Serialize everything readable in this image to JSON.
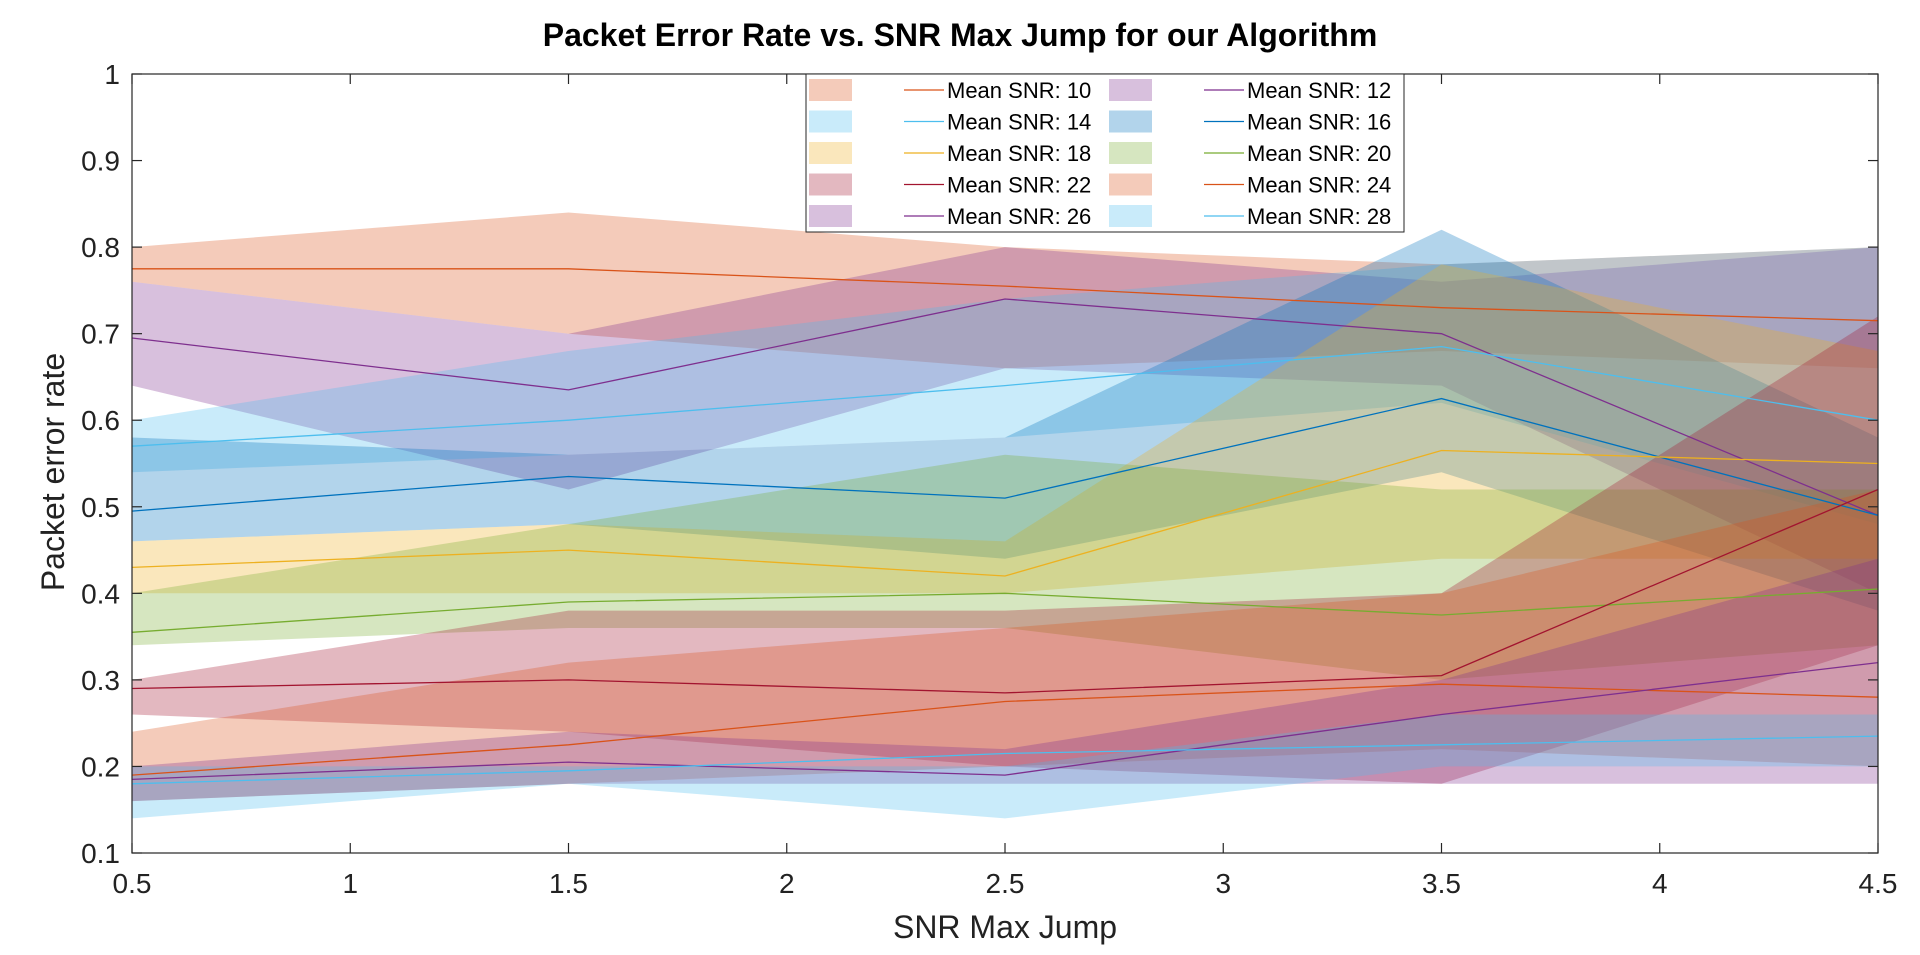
{
  "chart_data": {
    "type": "area",
    "title": "Packet Error Rate vs. SNR Max Jump for our Algorithm",
    "xlabel": "SNR Max Jump",
    "ylabel": "Packet error rate",
    "xlim": [
      0.5,
      4.5
    ],
    "ylim": [
      0.1,
      1
    ],
    "xticks": [
      0.5,
      1,
      1.5,
      2,
      2.5,
      3,
      3.5,
      4,
      4.5
    ],
    "yticks": [
      0.1,
      0.2,
      0.3,
      0.4,
      0.5,
      0.6,
      0.7,
      0.8,
      0.9,
      1
    ],
    "xtick_labels": [
      "0.5",
      "1",
      "1.5",
      "2",
      "2.5",
      "3",
      "3.5",
      "4",
      "4.5"
    ],
    "ytick_labels": [
      "0.1",
      "0.2",
      "0.3",
      "0.4",
      "0.5",
      "0.6",
      "0.7",
      "0.8",
      "0.9",
      "1"
    ],
    "grid": false,
    "legend_position": "top-center",
    "legend_columns": 2,
    "x": [
      0.5,
      1.5,
      2.5,
      3.5,
      4.5
    ],
    "series": [
      {
        "name": "Mean SNR: 10",
        "color": "#D95319",
        "mean": [
          0.775,
          0.775,
          0.755,
          0.73,
          0.715
        ],
        "lower": [
          0.76,
          0.7,
          0.66,
          0.68,
          0.66
        ],
        "upper": [
          0.8,
          0.84,
          0.8,
          0.78,
          0.8
        ]
      },
      {
        "name": "Mean SNR: 12",
        "color": "#7E2F8E",
        "mean": [
          0.695,
          0.635,
          0.74,
          0.7,
          0.49
        ],
        "lower": [
          0.64,
          0.52,
          0.66,
          0.64,
          0.4
        ],
        "upper": [
          0.76,
          0.7,
          0.8,
          0.76,
          0.8
        ]
      },
      {
        "name": "Mean SNR: 14",
        "color": "#4DBEEE",
        "mean": [
          0.57,
          0.6,
          0.64,
          0.685,
          0.6
        ],
        "lower": [
          0.54,
          0.56,
          0.58,
          0.62,
          0.48
        ],
        "upper": [
          0.6,
          0.68,
          0.74,
          0.78,
          0.8
        ]
      },
      {
        "name": "Mean SNR: 16",
        "color": "#0072BD",
        "mean": [
          0.495,
          0.535,
          0.51,
          0.625,
          0.49
        ],
        "lower": [
          0.46,
          0.48,
          0.44,
          0.54,
          0.38
        ],
        "upper": [
          0.58,
          0.56,
          0.58,
          0.82,
          0.58
        ]
      },
      {
        "name": "Mean SNR: 18",
        "color": "#EDB120",
        "mean": [
          0.43,
          0.45,
          0.42,
          0.565,
          0.55
        ],
        "lower": [
          0.4,
          0.4,
          0.4,
          0.44,
          0.44
        ],
        "upper": [
          0.46,
          0.48,
          0.46,
          0.78,
          0.68
        ]
      },
      {
        "name": "Mean SNR: 20",
        "color": "#77AC30",
        "mean": [
          0.355,
          0.39,
          0.4,
          0.375,
          0.405
        ],
        "lower": [
          0.34,
          0.36,
          0.36,
          0.3,
          0.34
        ],
        "upper": [
          0.4,
          0.48,
          0.56,
          0.52,
          0.52
        ]
      },
      {
        "name": "Mean SNR: 22",
        "color": "#A2142F",
        "mean": [
          0.29,
          0.3,
          0.285,
          0.305,
          0.52
        ],
        "lower": [
          0.26,
          0.24,
          0.2,
          0.18,
          0.34
        ],
        "upper": [
          0.3,
          0.38,
          0.38,
          0.4,
          0.72
        ]
      },
      {
        "name": "Mean SNR: 24",
        "color": "#D95319",
        "mean": [
          0.19,
          0.225,
          0.275,
          0.295,
          0.28
        ],
        "lower": [
          0.16,
          0.18,
          0.2,
          0.22,
          0.2
        ],
        "upper": [
          0.24,
          0.32,
          0.36,
          0.4,
          0.52
        ]
      },
      {
        "name": "Mean SNR: 26",
        "color": "#7E2F8E",
        "mean": [
          0.185,
          0.205,
          0.19,
          0.26,
          0.32
        ],
        "lower": [
          0.16,
          0.18,
          0.18,
          0.18,
          0.18
        ],
        "upper": [
          0.2,
          0.24,
          0.22,
          0.3,
          0.44
        ]
      },
      {
        "name": "Mean SNR: 28",
        "color": "#4DBEEE",
        "mean": [
          0.18,
          0.195,
          0.215,
          0.225,
          0.235
        ],
        "lower": [
          0.14,
          0.18,
          0.14,
          0.2,
          0.2
        ],
        "upper": [
          0.2,
          0.2,
          0.2,
          0.26,
          0.26
        ]
      }
    ]
  }
}
